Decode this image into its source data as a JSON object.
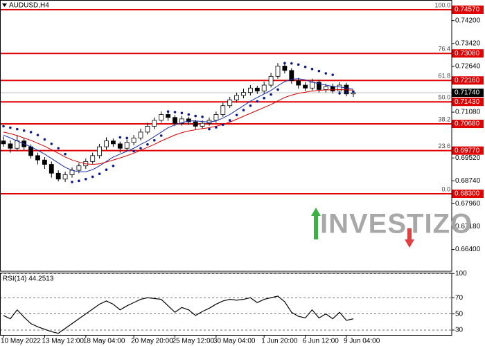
{
  "chart_data": [
    {
      "type": "candlestick",
      "title": "AUDUSD,H4",
      "categories": [
        "10 May 2022",
        null,
        null,
        null,
        null,
        null,
        "13 May 12:00",
        null,
        null,
        null,
        null,
        null,
        "18 May 04:00",
        null,
        null,
        null,
        null,
        null,
        null,
        "20 May 20:00",
        null,
        null,
        null,
        null,
        null,
        "25 May 12:00",
        null,
        null,
        null,
        null,
        null,
        "30 May 04:00",
        null,
        null,
        null,
        null,
        null,
        null,
        "1 Jun 20:00",
        null,
        null,
        null,
        null,
        null,
        "6 Jun 12:00",
        null,
        null,
        null,
        null,
        null,
        "9 Jun 04:00",
        null
      ],
      "open": [
        0.701,
        0.7,
        0.6985,
        0.701,
        0.699,
        0.696,
        0.6945,
        0.693,
        0.69,
        0.688,
        0.6895,
        0.691,
        0.6925,
        0.694,
        0.696,
        0.699,
        0.701,
        0.7,
        0.6985,
        0.7005,
        0.702,
        0.704,
        0.706,
        0.708,
        0.71,
        0.709,
        0.707,
        0.7085,
        0.7075,
        0.706,
        0.707,
        0.708,
        0.71,
        0.713,
        0.715,
        0.7165,
        0.7175,
        0.719,
        0.718,
        0.72,
        0.723,
        0.7265,
        0.725,
        0.7215,
        0.72,
        0.719,
        0.721,
        0.7185,
        0.7195,
        0.718,
        0.72,
        0.717
      ],
      "high": [
        0.7025,
        0.7012,
        0.703,
        0.702,
        0.6998,
        0.697,
        0.6955,
        0.694,
        0.691,
        0.6905,
        0.692,
        0.6935,
        0.695,
        0.697,
        0.7,
        0.7022,
        0.7018,
        0.7008,
        0.7015,
        0.703,
        0.7052,
        0.7072,
        0.709,
        0.711,
        0.7108,
        0.7098,
        0.7095,
        0.7092,
        0.7082,
        0.708,
        0.709,
        0.711,
        0.714,
        0.716,
        0.7175,
        0.7188,
        0.72,
        0.7198,
        0.7212,
        0.7242,
        0.7275,
        0.7272,
        0.7258,
        0.7225,
        0.721,
        0.7222,
        0.7218,
        0.7205,
        0.7205,
        0.721,
        0.7208,
        0.7182
      ],
      "low": [
        0.699,
        0.697,
        0.6975,
        0.698,
        0.695,
        0.693,
        0.6915,
        0.6885,
        0.6872,
        0.687,
        0.6885,
        0.69,
        0.6915,
        0.6932,
        0.695,
        0.698,
        0.699,
        0.697,
        0.6975,
        0.6995,
        0.7012,
        0.7032,
        0.705,
        0.7072,
        0.7078,
        0.706,
        0.7062,
        0.7065,
        0.705,
        0.7052,
        0.7062,
        0.7072,
        0.7092,
        0.7122,
        0.714,
        0.7155,
        0.7165,
        0.717,
        0.7172,
        0.7192,
        0.7222,
        0.724,
        0.7205,
        0.7188,
        0.718,
        0.7182,
        0.7175,
        0.7175,
        0.7172,
        0.7172,
        0.7162,
        0.716
      ],
      "close": [
        0.7,
        0.6985,
        0.701,
        0.699,
        0.696,
        0.6945,
        0.693,
        0.69,
        0.688,
        0.6895,
        0.691,
        0.6925,
        0.694,
        0.696,
        0.699,
        0.701,
        0.7,
        0.6985,
        0.7005,
        0.702,
        0.704,
        0.706,
        0.708,
        0.71,
        0.709,
        0.707,
        0.7085,
        0.7075,
        0.706,
        0.707,
        0.708,
        0.71,
        0.713,
        0.715,
        0.7165,
        0.7175,
        0.719,
        0.718,
        0.72,
        0.723,
        0.7265,
        0.725,
        0.7215,
        0.72,
        0.719,
        0.721,
        0.7185,
        0.7195,
        0.718,
        0.72,
        0.717,
        0.7174
      ],
      "bull_color": "#ffffff",
      "bear_color": "#000000",
      "overlays": [
        {
          "kind": "line",
          "color": "#1a2fa8",
          "values": [
            0.703,
            0.702,
            0.701,
            0.7,
            0.699,
            0.6978,
            0.6965,
            0.695,
            0.6935,
            0.692,
            0.691,
            0.6905,
            0.6905,
            0.6912,
            0.6925,
            0.694,
            0.6955,
            0.6965,
            0.6975,
            0.6985,
            0.6998,
            0.701,
            0.7025,
            0.704,
            0.7055,
            0.7065,
            0.7072,
            0.7078,
            0.7078,
            0.7076,
            0.7074,
            0.7078,
            0.7088,
            0.71,
            0.7115,
            0.713,
            0.7145,
            0.7158,
            0.717,
            0.7182,
            0.7198,
            0.7212,
            0.722,
            0.7222,
            0.7218,
            0.721,
            0.7205,
            0.72,
            0.7196,
            0.7194,
            0.719,
            0.7186
          ]
        },
        {
          "kind": "line",
          "color": "#d40000",
          "values": [
            0.704,
            0.7035,
            0.7028,
            0.702,
            0.7012,
            0.7002,
            0.6992,
            0.698,
            0.6968,
            0.6955,
            0.6945,
            0.6938,
            0.6932,
            0.693,
            0.6932,
            0.6938,
            0.6945,
            0.6952,
            0.696,
            0.6968,
            0.6978,
            0.6988,
            0.6998,
            0.701,
            0.702,
            0.703,
            0.7038,
            0.7044,
            0.7048,
            0.7052,
            0.7055,
            0.706,
            0.7066,
            0.7074,
            0.7084,
            0.7094,
            0.7104,
            0.7114,
            0.7124,
            0.7134,
            0.7146,
            0.7158,
            0.7166,
            0.7172,
            0.7176,
            0.718,
            0.7182,
            0.7184,
            0.7184,
            0.7185,
            0.7184,
            0.7183
          ]
        },
        {
          "kind": "dots",
          "color": "#0a1a8c",
          "values": [
            0.706,
            0.7055,
            0.705,
            0.7045,
            0.704,
            0.703,
            0.7015,
            0.7,
            0.6985,
            0.6965,
            0.687,
            0.6874,
            0.688,
            0.6888,
            0.6898,
            0.6912,
            0.6925,
            0.7022,
            0.702,
            0.6975,
            0.6985,
            0.6998,
            0.7012,
            0.7028,
            0.711,
            0.7108,
            0.7105,
            0.71,
            0.7095,
            0.7092,
            0.705,
            0.7056,
            0.7065,
            0.708,
            0.7098,
            0.7115,
            0.713,
            0.7145,
            0.7156,
            0.7168,
            0.7185,
            0.7275,
            0.7274,
            0.727,
            0.7262,
            0.7255,
            0.7248,
            0.724,
            0.7235,
            0.7172,
            0.7175,
            0.7178
          ]
        }
      ],
      "ylim": [
        0.6566,
        0.749
      ],
      "yticks": [
        {
          "value": 0.742,
          "label": "0.74200"
        },
        {
          "value": 0.7342,
          "label": "0.73420"
        },
        {
          "value": 0.7264,
          "label": "0.72640"
        },
        {
          "value": 0.7108,
          "label": "0.71080"
        },
        {
          "value": 0.6952,
          "label": "0.69520"
        },
        {
          "value": 0.6874,
          "label": "0.68740"
        },
        {
          "value": 0.6796,
          "label": "0.67960"
        },
        {
          "value": 0.6718,
          "label": "0.67180"
        },
        {
          "value": 0.664,
          "label": "0.66400"
        }
      ],
      "levels": [
        {
          "ratio": "100.0",
          "price": 0.7457,
          "price_label": "0.74570"
        },
        {
          "ratio": "76.4",
          "price": 0.7308,
          "price_label": "0.73080"
        },
        {
          "ratio": "61.8",
          "price": 0.7216,
          "price_label": "0.72160"
        },
        {
          "ratio": "50.0",
          "price": 0.7143,
          "price_label": "0.71430"
        },
        {
          "ratio": "38.2",
          "price": 0.7068,
          "price_label": "0.70680"
        },
        {
          "ratio": "23.6",
          "price": 0.6977,
          "price_label": "0.69770"
        },
        {
          "ratio": "0.0",
          "price": 0.683,
          "price_label": "0.68300"
        }
      ],
      "level_color": "#e00000",
      "last_price": {
        "value": 0.7174,
        "label": "0.71740"
      },
      "watermark": "INVESTIZO"
    },
    {
      "type": "line",
      "title": "RSI(14) 44.2513",
      "color": "#000000",
      "values": [
        48,
        44,
        55,
        46,
        38,
        34,
        31,
        28,
        26,
        32,
        38,
        44,
        50,
        56,
        62,
        66,
        62,
        55,
        60,
        64,
        68,
        70,
        69,
        68,
        60,
        52,
        58,
        55,
        48,
        53,
        57,
        62,
        66,
        68,
        67,
        68,
        70,
        64,
        68,
        70,
        72,
        65,
        52,
        47,
        45,
        55,
        45,
        50,
        44,
        52,
        42,
        44
      ],
      "ylim": [
        24,
        101
      ],
      "yticks": [
        100,
        70,
        50,
        30
      ]
    }
  ]
}
